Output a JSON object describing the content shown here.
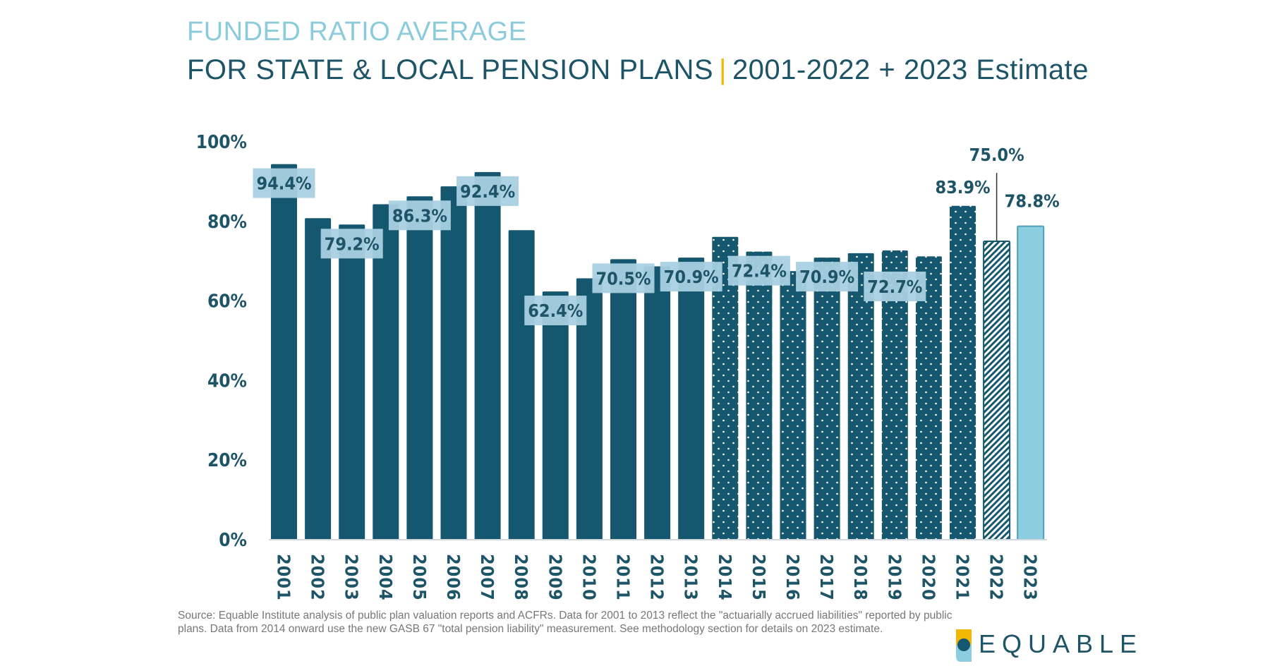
{
  "title": {
    "line1": "FUNDED RATIO AVERAGE",
    "line2_main": "FOR STATE & LOCAL PENSION PLANS",
    "separator": "|",
    "line2_sub": "2001-2022 + 2023 Estimate"
  },
  "chart_data": {
    "type": "bar",
    "title": "FUNDED RATIO AVERAGE FOR STATE & LOCAL PENSION PLANS | 2001-2022 + 2023 Estimate",
    "xlabel": "",
    "ylabel": "",
    "ylim": [
      0,
      100
    ],
    "yticks": [
      "0%",
      "20%",
      "40%",
      "60%",
      "80%",
      "100%"
    ],
    "grid": false,
    "categories": [
      "2001",
      "2002",
      "2003",
      "2004",
      "2005",
      "2006",
      "2007",
      "2008",
      "2009",
      "2010",
      "2011",
      "2012",
      "2013",
      "2014",
      "2015",
      "2016",
      "2017",
      "2018",
      "2019",
      "2020",
      "2021",
      "2022",
      "2023"
    ],
    "values": [
      94.4,
      80.8,
      79.2,
      84.3,
      86.3,
      88.8,
      92.4,
      77.8,
      62.4,
      65.7,
      70.5,
      68.7,
      70.9,
      76.1,
      72.4,
      67.5,
      70.9,
      72.0,
      72.7,
      71.2,
      83.9,
      75.0,
      78.8
    ],
    "bar_styles": [
      "solid",
      "solid",
      "solid",
      "solid",
      "solid",
      "solid",
      "solid",
      "solid",
      "solid",
      "solid",
      "solid",
      "solid",
      "solid",
      "dotted",
      "dotted",
      "dotted",
      "dotted",
      "dotted",
      "dotted",
      "dotted",
      "dotted",
      "hatched",
      "light"
    ],
    "data_labels": {
      "2001": "94.4%",
      "2003": "79.2%",
      "2005": "86.3%",
      "2007": "92.4%",
      "2009": "62.4%",
      "2011": "70.5%",
      "2013": "70.9%",
      "2015": "72.4%",
      "2017": "70.9%",
      "2019": "72.7%",
      "2021": "83.9%",
      "2022": "75.0%",
      "2023": "78.8%"
    },
    "colors": {
      "dark": "#15576e",
      "light": "#8dcde0",
      "label_box": "#a9d0e1",
      "label_text": "#1e5468",
      "title_light": "#8ccbdc",
      "accent": "#f2b705"
    }
  },
  "source": {
    "text": "Source: Equable Institute analysis of public plan valuation reports and ACFRs. Data for 2001 to 2013 reflect the \"actuarially accrued liabilities\" reported by public plans. Data from 2014 onward use the new GASB 67 \"total pension liability\" measurement. See methodology section for details on 2023 estimate."
  },
  "logo": {
    "text": "EQUABLE"
  }
}
